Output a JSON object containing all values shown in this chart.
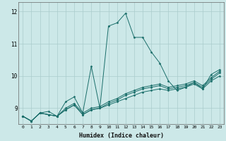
{
  "xlabel": "Humidex (Indice chaleur)",
  "ylabel": "",
  "bg_color": "#cce8e8",
  "grid_color": "#aacccc",
  "line_color": "#1a6e6a",
  "xlim": [
    -0.5,
    23.5
  ],
  "ylim": [
    8.5,
    12.3
  ],
  "yticks": [
    9,
    10,
    11,
    12
  ],
  "xticks": [
    0,
    1,
    2,
    3,
    4,
    5,
    6,
    7,
    8,
    9,
    10,
    11,
    12,
    13,
    14,
    15,
    16,
    17,
    18,
    19,
    20,
    21,
    22,
    23
  ],
  "series": [
    [
      8.75,
      8.6,
      8.85,
      8.9,
      8.75,
      9.2,
      9.35,
      8.85,
      10.3,
      9.0,
      11.55,
      11.65,
      11.95,
      11.2,
      11.2,
      10.75,
      10.4,
      9.85,
      9.55,
      9.65,
      9.8,
      9.6,
      10.05,
      10.2
    ],
    [
      8.75,
      8.6,
      8.85,
      8.8,
      8.75,
      8.95,
      9.1,
      8.8,
      8.95,
      9.0,
      9.1,
      9.2,
      9.3,
      9.4,
      9.5,
      9.55,
      9.6,
      9.55,
      9.6,
      9.65,
      9.75,
      9.6,
      9.85,
      10.0
    ],
    [
      8.75,
      8.6,
      8.85,
      8.8,
      8.75,
      8.95,
      9.1,
      8.8,
      8.95,
      9.0,
      9.15,
      9.25,
      9.4,
      9.5,
      9.6,
      9.65,
      9.7,
      9.6,
      9.65,
      9.7,
      9.8,
      9.65,
      9.9,
      10.1
    ],
    [
      8.75,
      8.6,
      8.85,
      8.8,
      8.75,
      9.0,
      9.15,
      8.85,
      9.0,
      9.05,
      9.2,
      9.3,
      9.45,
      9.55,
      9.65,
      9.7,
      9.75,
      9.65,
      9.7,
      9.75,
      9.85,
      9.7,
      9.95,
      10.15
    ]
  ]
}
